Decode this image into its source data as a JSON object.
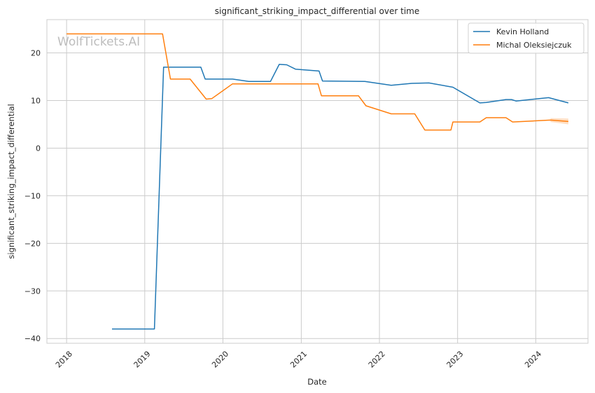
{
  "watermark": "WolfTickets.AI",
  "chart_data": {
    "type": "line",
    "title": "significant_striking_impact_differential over time",
    "xlabel": "Date",
    "ylabel": "significant_striking_impact_differential",
    "xlim": [
      "2017-10-01",
      "2024-09-01"
    ],
    "ylim": [
      -41,
      27
    ],
    "x_ticks": [
      "2018",
      "2019",
      "2020",
      "2021",
      "2022",
      "2023",
      "2024"
    ],
    "y_ticks": [
      20,
      10,
      0,
      -10,
      -20,
      -30,
      -40
    ],
    "grid": true,
    "legend_position": "top-right",
    "series": [
      {
        "name": "Kevin Holland",
        "color": "#1f77b4",
        "points": [
          [
            "2018-08-01",
            -38
          ],
          [
            "2019-02-15",
            -38
          ],
          [
            "2019-03-30",
            17
          ],
          [
            "2019-09-20",
            17
          ],
          [
            "2019-10-10",
            14.5
          ],
          [
            "2020-02-15",
            14.5
          ],
          [
            "2020-05-01",
            14
          ],
          [
            "2020-08-10",
            14
          ],
          [
            "2020-09-20",
            17.6
          ],
          [
            "2020-10-25",
            17.5
          ],
          [
            "2020-12-05",
            16.6
          ],
          [
            "2021-03-25",
            16.2
          ],
          [
            "2021-04-10",
            14.1
          ],
          [
            "2021-10-25",
            14
          ],
          [
            "2022-02-25",
            13.2
          ],
          [
            "2022-06-01",
            13.6
          ],
          [
            "2022-08-20",
            13.7
          ],
          [
            "2022-12-10",
            12.8
          ],
          [
            "2023-04-15",
            9.5
          ],
          [
            "2023-05-15",
            9.6
          ],
          [
            "2023-08-15",
            10.2
          ],
          [
            "2023-09-10",
            10.2
          ],
          [
            "2023-10-01",
            9.9
          ],
          [
            "2024-03-01",
            10.6
          ],
          [
            "2024-06-01",
            9.5
          ]
        ]
      },
      {
        "name": "Michal Oleksiejczuk",
        "color": "#ff7f0e",
        "points": [
          [
            "2018-01-01",
            24
          ],
          [
            "2019-03-25",
            24
          ],
          [
            "2019-05-01",
            14.5
          ],
          [
            "2019-08-01",
            14.5
          ],
          [
            "2019-10-15",
            10.3
          ],
          [
            "2019-11-10",
            10.4
          ],
          [
            "2020-02-15",
            13.5
          ],
          [
            "2021-03-20",
            13.5
          ],
          [
            "2021-04-05",
            11
          ],
          [
            "2021-09-25",
            11
          ],
          [
            "2021-10-30",
            8.9
          ],
          [
            "2022-02-25",
            7.2
          ],
          [
            "2022-06-15",
            7.2
          ],
          [
            "2022-08-01",
            3.8
          ],
          [
            "2022-12-01",
            3.8
          ],
          [
            "2022-12-10",
            5.5
          ],
          [
            "2023-04-15",
            5.5
          ],
          [
            "2023-05-15",
            6.4
          ],
          [
            "2023-08-15",
            6.4
          ],
          [
            "2023-09-15",
            5.5
          ],
          [
            "2024-03-10",
            5.9
          ],
          [
            "2024-06-01",
            5.6
          ]
        ],
        "confidence_band": {
          "points": [
            [
              "2024-03-10",
              5.5,
              6.3
            ],
            [
              "2024-06-01",
              5.0,
              6.2
            ]
          ]
        }
      }
    ]
  }
}
